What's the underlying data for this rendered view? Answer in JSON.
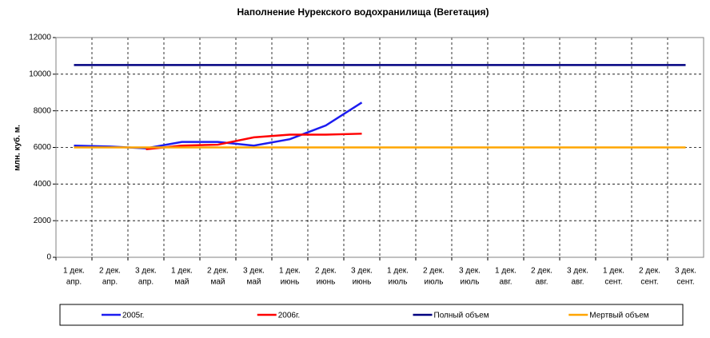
{
  "chart_data": {
    "type": "line",
    "title": "Наполнение Нурекского водохранилища (Вегетация)",
    "y_label": "млн. куб. м.",
    "categories": [
      [
        "1 дек.",
        "апр."
      ],
      [
        "2 дек.",
        "апр."
      ],
      [
        "3 дек.",
        "апр."
      ],
      [
        "1 дек.",
        "май"
      ],
      [
        "2 дек.",
        "май"
      ],
      [
        "3 дек.",
        "май"
      ],
      [
        "1 дек.",
        "июнь"
      ],
      [
        "2 дек.",
        "июнь"
      ],
      [
        "3 дек.",
        "июнь"
      ],
      [
        "1 дек.",
        "июль"
      ],
      [
        "2 дек.",
        "июль"
      ],
      [
        "3 дек.",
        "июль"
      ],
      [
        "1 дек.",
        "авг."
      ],
      [
        "2 дек.",
        "авг."
      ],
      [
        "3 дек.",
        "авг."
      ],
      [
        "1 дек.",
        "сент."
      ],
      [
        "2 дек.",
        "сент."
      ],
      [
        "3 дек.",
        "сент."
      ]
    ],
    "series": [
      {
        "name": "2005г.",
        "color": "#1c1cf0",
        "values": [
          6100,
          6050,
          5950,
          6300,
          6300,
          6100,
          6450,
          7200,
          8450,
          null,
          null,
          null,
          null,
          null,
          null,
          null,
          null,
          null
        ]
      },
      {
        "name": "2006г.",
        "color": "#ff0000",
        "values": [
          null,
          null,
          5900,
          6100,
          6150,
          6550,
          6700,
          6700,
          6750,
          null,
          null,
          null,
          null,
          null,
          null,
          null,
          null,
          null
        ]
      },
      {
        "name": "Полный объем",
        "color": "#000080",
        "values": [
          10500,
          10500,
          10500,
          10500,
          10500,
          10500,
          10500,
          10500,
          10500,
          10500,
          10500,
          10500,
          10500,
          10500,
          10500,
          10500,
          10500,
          10500
        ]
      },
      {
        "name": "Мертвый объем",
        "color": "#ffa500",
        "values": [
          6000,
          6000,
          6000,
          6000,
          6000,
          6000,
          6000,
          6000,
          6000,
          6000,
          6000,
          6000,
          6000,
          6000,
          6000,
          6000,
          6000,
          6000
        ]
      }
    ],
    "ylim": [
      0,
      12000
    ],
    "yticks": [
      0,
      2000,
      4000,
      6000,
      8000,
      10000,
      12000
    ],
    "grid": true,
    "legend": "bottom"
  }
}
